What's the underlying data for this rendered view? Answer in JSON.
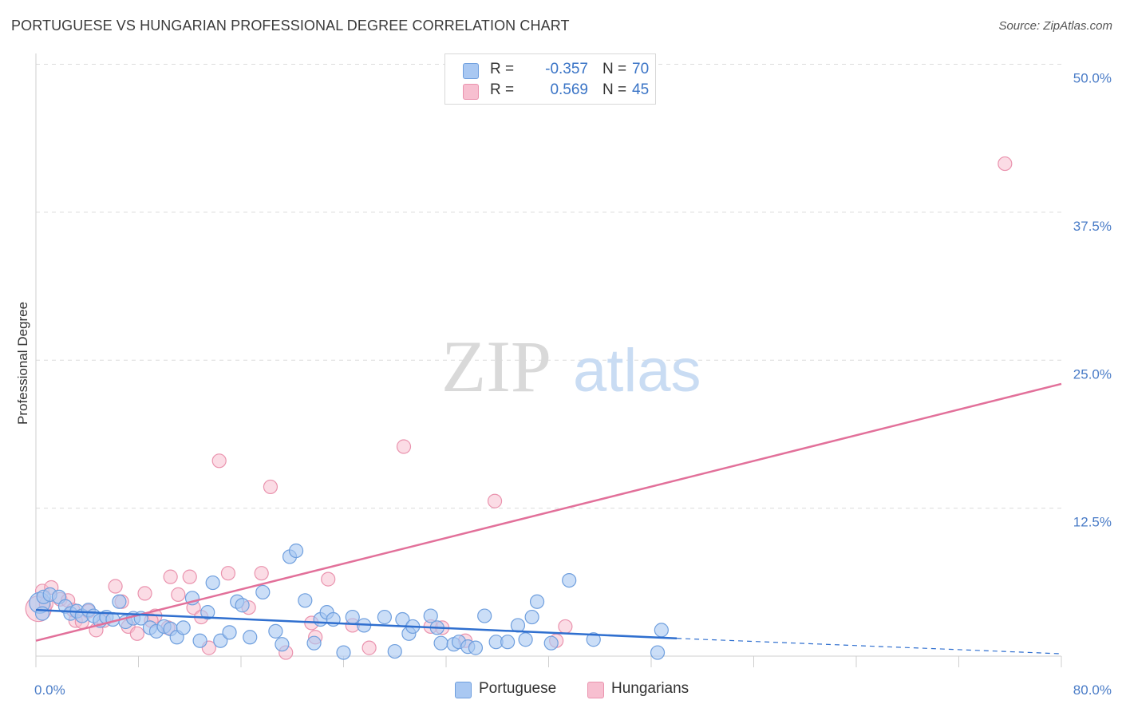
{
  "title": "PORTUGUESE VS HUNGARIAN PROFESSIONAL DEGREE CORRELATION CHART",
  "source": "Source: ZipAtlas.com",
  "watermark": {
    "zip": "ZIP",
    "atlas": "atlas"
  },
  "legend_top": [
    {
      "r_label": "R =",
      "r_value": "-0.357",
      "n_label": "N =",
      "n_value": "70"
    },
    {
      "r_label": "R =",
      "r_value": "0.569",
      "n_label": "N =",
      "n_value": "45"
    }
  ],
  "legend_bottom": [
    {
      "label": "Portuguese"
    },
    {
      "label": "Hungarians"
    }
  ],
  "chart_data": {
    "type": "scatter",
    "ylabel": "Professional Degree",
    "xlabel": "",
    "xlim": [
      0,
      80
    ],
    "ylim": [
      0,
      50
    ],
    "x_tick_labels": [
      "0.0%",
      "80.0%"
    ],
    "y_ticks": [
      12.5,
      25.0,
      37.5,
      50.0
    ],
    "y_tick_labels": [
      "12.5%",
      "25.0%",
      "37.5%",
      "50.0%"
    ],
    "grid": true,
    "colors": {
      "portuguese_fill": "#a9c8f2",
      "portuguese_stroke": "#6f9fde",
      "portuguese_line": "#2f6fcf",
      "hungarian_fill": "#f7bfd0",
      "hungarian_stroke": "#ea93ae",
      "hungarian_line": "#e2709a"
    },
    "series": [
      {
        "name": "Portuguese",
        "trend": {
          "x": [
            0,
            50
          ],
          "y": [
            3.9,
            1.5
          ],
          "dashed_to": [
            80,
            0.2
          ]
        },
        "points": [
          [
            0.3,
            4.5
          ],
          [
            0.6,
            5.0
          ],
          [
            1.1,
            5.2
          ],
          [
            1.8,
            5.0
          ],
          [
            2.3,
            4.2
          ],
          [
            2.7,
            3.6
          ],
          [
            3.2,
            3.8
          ],
          [
            3.6,
            3.4
          ],
          [
            4.1,
            3.9
          ],
          [
            4.5,
            3.4
          ],
          [
            5.0,
            3.0
          ],
          [
            5.5,
            3.3
          ],
          [
            6.0,
            3.1
          ],
          [
            6.5,
            4.6
          ],
          [
            7.0,
            2.9
          ],
          [
            7.6,
            3.2
          ],
          [
            8.2,
            3.2
          ],
          [
            8.9,
            2.4
          ],
          [
            9.4,
            2.1
          ],
          [
            10.0,
            2.5
          ],
          [
            10.5,
            2.3
          ],
          [
            11.0,
            1.6
          ],
          [
            11.5,
            2.4
          ],
          [
            12.2,
            4.9
          ],
          [
            12.8,
            1.3
          ],
          [
            13.4,
            3.7
          ],
          [
            13.8,
            6.2
          ],
          [
            14.4,
            1.3
          ],
          [
            15.1,
            2.0
          ],
          [
            15.7,
            4.6
          ],
          [
            16.1,
            4.3
          ],
          [
            16.7,
            1.6
          ],
          [
            17.7,
            5.4
          ],
          [
            18.7,
            2.1
          ],
          [
            19.2,
            1.0
          ],
          [
            19.8,
            8.4
          ],
          [
            20.3,
            8.9
          ],
          [
            21.0,
            4.7
          ],
          [
            21.7,
            1.1
          ],
          [
            22.2,
            3.1
          ],
          [
            22.7,
            3.7
          ],
          [
            23.2,
            3.1
          ],
          [
            24.0,
            0.3
          ],
          [
            24.7,
            3.3
          ],
          [
            25.6,
            2.6
          ],
          [
            27.2,
            3.3
          ],
          [
            28.0,
            0.4
          ],
          [
            28.6,
            3.1
          ],
          [
            29.1,
            1.9
          ],
          [
            29.4,
            2.5
          ],
          [
            30.8,
            3.4
          ],
          [
            31.3,
            2.4
          ],
          [
            31.6,
            1.1
          ],
          [
            32.6,
            1.0
          ],
          [
            33.0,
            1.2
          ],
          [
            33.7,
            0.8
          ],
          [
            34.3,
            0.7
          ],
          [
            35.0,
            3.4
          ],
          [
            35.9,
            1.2
          ],
          [
            36.8,
            1.2
          ],
          [
            37.6,
            2.6
          ],
          [
            38.2,
            1.4
          ],
          [
            38.7,
            3.3
          ],
          [
            39.1,
            4.6
          ],
          [
            40.2,
            1.1
          ],
          [
            41.6,
            6.4
          ],
          [
            43.5,
            1.4
          ],
          [
            48.5,
            0.3
          ],
          [
            48.8,
            2.2
          ],
          [
            0.5,
            3.6
          ]
        ]
      },
      {
        "name": "Hungarians",
        "trend": {
          "x": [
            0,
            80
          ],
          "y": [
            1.3,
            23.0
          ]
        },
        "points": [
          [
            0.2,
            4.0
          ],
          [
            0.5,
            5.5
          ],
          [
            1.2,
            5.8
          ],
          [
            1.9,
            4.8
          ],
          [
            2.5,
            4.7
          ],
          [
            3.1,
            3.0
          ],
          [
            3.6,
            2.9
          ],
          [
            4.1,
            3.8
          ],
          [
            4.7,
            2.2
          ],
          [
            5.3,
            3.0
          ],
          [
            6.2,
            5.9
          ],
          [
            6.7,
            4.6
          ],
          [
            7.2,
            2.5
          ],
          [
            7.9,
            1.9
          ],
          [
            8.5,
            5.3
          ],
          [
            9.3,
            3.4
          ],
          [
            10.3,
            2.4
          ],
          [
            10.5,
            6.7
          ],
          [
            11.1,
            5.2
          ],
          [
            12.0,
            6.7
          ],
          [
            12.3,
            4.1
          ],
          [
            12.9,
            3.3
          ],
          [
            13.5,
            0.7
          ],
          [
            14.3,
            16.5
          ],
          [
            15.0,
            7.0
          ],
          [
            16.6,
            4.1
          ],
          [
            17.6,
            7.0
          ],
          [
            18.3,
            14.3
          ],
          [
            19.5,
            0.3
          ],
          [
            21.5,
            2.8
          ],
          [
            21.8,
            1.6
          ],
          [
            22.8,
            6.5
          ],
          [
            24.7,
            2.6
          ],
          [
            26.0,
            0.7
          ],
          [
            28.7,
            17.7
          ],
          [
            30.8,
            2.5
          ],
          [
            31.7,
            2.4
          ],
          [
            33.5,
            1.3
          ],
          [
            35.8,
            13.1
          ],
          [
            40.6,
            1.3
          ],
          [
            41.3,
            2.5
          ],
          [
            75.6,
            41.6
          ],
          [
            0.8,
            4.4
          ],
          [
            2.9,
            3.9
          ],
          [
            9.0,
            3.0
          ]
        ]
      }
    ]
  }
}
